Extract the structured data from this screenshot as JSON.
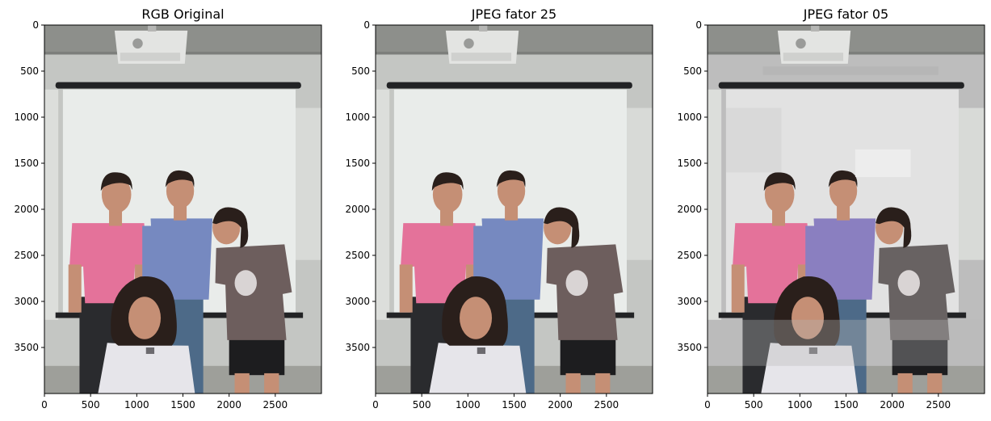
{
  "palette": {
    "wall": "#c4c6c3",
    "ceiling": "#8d8f8b",
    "screen": "#e9ecea",
    "screen_bar": "#222325",
    "projector": "#e3e4e2",
    "floor_strip": "#9e9f9a",
    "skin": "#c58f75",
    "hair": "#2a1f1b",
    "pink_shirt": "#e4729a",
    "blue_shirt": "#7689c0",
    "brown_shirt": "#6d5e5d",
    "white_shirt": "#e6e5ea",
    "jeans": "#4d6a88",
    "dark_pants": "#2a2b2e",
    "black_shorts": "#1d1d1f",
    "q05_blue_shirt": "#8a7fc0",
    "q05_brown_shirt": "#686262"
  },
  "chart_data": [
    {
      "type": "image",
      "title": "RGB Original",
      "xlim": [
        0,
        3000
      ],
      "ylim": [
        4000,
        0
      ],
      "xticks": [
        0,
        500,
        1000,
        1500,
        2000,
        2500
      ],
      "yticks": [
        0,
        500,
        1000,
        1500,
        2000,
        2500,
        3000,
        3500
      ],
      "variant": "original"
    },
    {
      "type": "image",
      "title": "JPEG fator 25",
      "xlim": [
        0,
        3000
      ],
      "ylim": [
        4000,
        0
      ],
      "xticks": [
        0,
        500,
        1000,
        1500,
        2000,
        2500
      ],
      "yticks": [
        0,
        500,
        1000,
        1500,
        2000,
        2500,
        3000,
        3500
      ],
      "variant": "q25"
    },
    {
      "type": "image",
      "title": "JPEG fator 05",
      "xlim": [
        0,
        3000
      ],
      "ylim": [
        4000,
        0
      ],
      "xticks": [
        0,
        500,
        1000,
        1500,
        2000,
        2500
      ],
      "yticks": [
        0,
        500,
        1000,
        1500,
        2000,
        2500,
        3000,
        3500
      ],
      "variant": "q05"
    }
  ]
}
